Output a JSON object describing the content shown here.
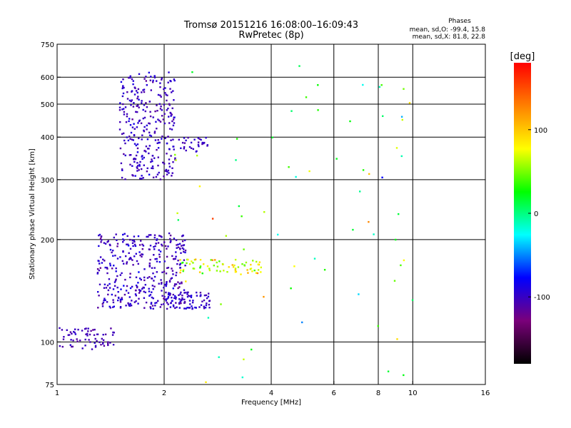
{
  "chart_data": {
    "type": "scatter",
    "title": "Tromsø 20151216 16:08:00–16:09:43",
    "subtitle": "RwPretec (8p)",
    "stats": {
      "heading": "Phases",
      "line_o": "mean, sd,O: -99.4, 15.8",
      "line_x": "mean, sd,X: 81.8, 22.8"
    },
    "xlabel": "Frequency [MHz]",
    "ylabel": "Stationary phase Virtual Height [km]",
    "x_scale": "log",
    "y_scale": "log",
    "xlim": [
      1,
      16
    ],
    "ylim": [
      75,
      750
    ],
    "x_ticks": [
      1,
      2,
      4,
      6,
      8,
      10,
      16
    ],
    "x_tick_labels": [
      "1",
      "2",
      "4",
      "6",
      "8",
      "10",
      "16"
    ],
    "x_gridlines": [
      2,
      4,
      6,
      8,
      10
    ],
    "y_ticks": [
      75,
      100,
      200,
      300,
      400,
      500,
      600,
      750
    ],
    "y_tick_labels": [
      "75",
      "100",
      "200",
      "300",
      "400",
      "500",
      "600",
      "750"
    ],
    "y_gridlines": [
      100,
      200,
      300,
      400,
      500,
      600
    ],
    "grid": true,
    "colorbar": {
      "label": "[deg]",
      "range": [
        -180,
        180
      ],
      "ticks": [
        100,
        0,
        -100
      ],
      "tick_labels": [
        "100",
        "0",
        "-100"
      ],
      "stops": [
        "#000000",
        "#7a007a",
        "#0000ff",
        "#00ffff",
        "#00ff00",
        "#ffff00",
        "#ff8000",
        "#ff0000"
      ]
    },
    "clusters": [
      {
        "region": "low E/F1 trace",
        "f_range": [
          1.0,
          1.45
        ],
        "h_range": [
          95,
          110
        ],
        "n": 70,
        "phase_mean": -105,
        "phase_sd": 10
      },
      {
        "region": "main lower band",
        "f_range": [
          1.3,
          2.3
        ],
        "h_range": [
          125,
          210
        ],
        "n": 380,
        "phase_mean": -100,
        "phase_sd": 15
      },
      {
        "region": "lower band tail",
        "f_range": [
          2.0,
          2.7
        ],
        "h_range": [
          125,
          140
        ],
        "n": 70,
        "phase_mean": -100,
        "phase_sd": 12
      },
      {
        "region": "lower band extension (X)",
        "f_range": [
          2.2,
          3.8
        ],
        "h_range": [
          158,
          175
        ],
        "n": 70,
        "phase_mean": 70,
        "phase_sd": 45
      },
      {
        "region": "upper F2 trace",
        "f_range": [
          1.5,
          2.15
        ],
        "h_range": [
          300,
          620
        ],
        "n": 300,
        "phase_mean": -100,
        "phase_sd": 12
      },
      {
        "region": "upper F2 tail",
        "f_range": [
          2.2,
          2.65
        ],
        "h_range": [
          360,
          400
        ],
        "n": 30,
        "phase_mean": -100,
        "phase_sd": 12
      },
      {
        "region": "scattered sparse",
        "f_range": [
          2.0,
          10.0
        ],
        "h_range": [
          75,
          650
        ],
        "n": 70,
        "phase_mean": 40,
        "phase_sd": 90
      }
    ]
  }
}
